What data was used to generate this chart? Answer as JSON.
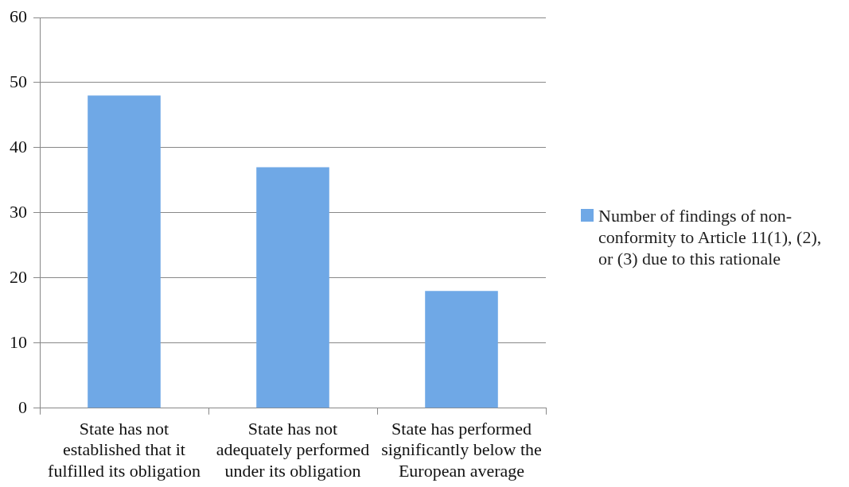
{
  "chart_data": {
    "type": "bar",
    "categories": [
      "State has not established that it fulfilled its obligation",
      "State has not adequately performed under its obligation",
      "State has performed significantly below the European average"
    ],
    "series": [
      {
        "name": "Number of findings of non-conformity to Article 11(1), (2), or (3) due to this rationale",
        "color": "#6fa8e6",
        "values": [
          48,
          37,
          18
        ]
      }
    ],
    "ylim": [
      0,
      60
    ],
    "yticks": [
      0,
      10,
      20,
      30,
      40,
      50,
      60
    ],
    "grid": "y",
    "legend": "right"
  }
}
